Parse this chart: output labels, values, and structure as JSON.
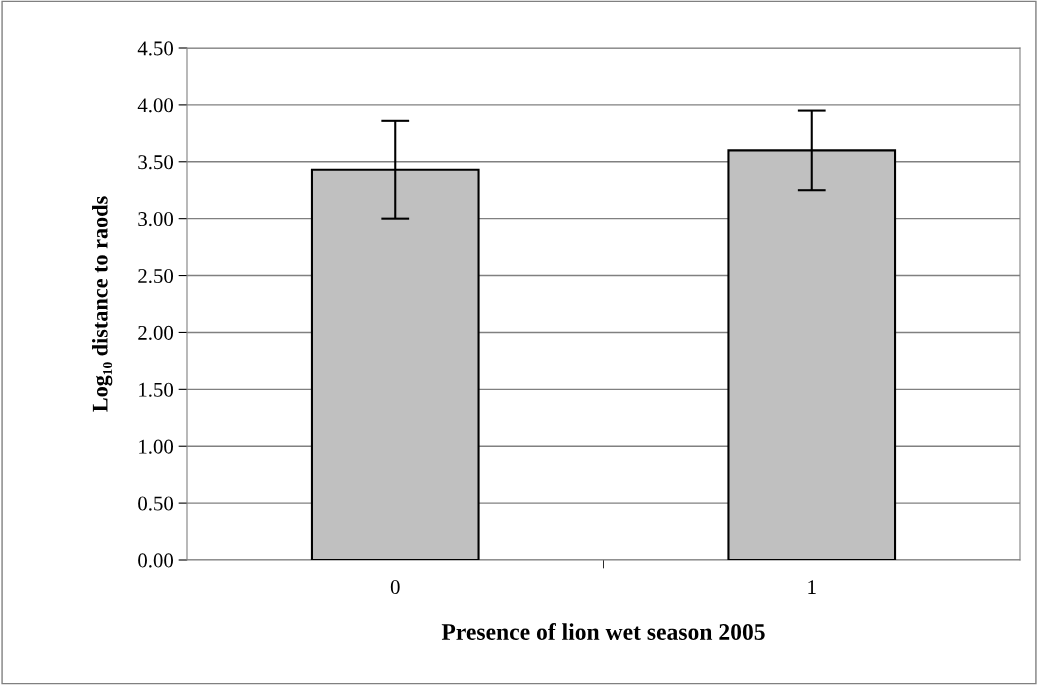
{
  "chart_data": {
    "type": "bar",
    "xlabel": "Presence of lion wet season 2005",
    "ylabel": "Log₁₀ distance to raods",
    "categories": [
      "0",
      "1"
    ],
    "values": [
      3.43,
      3.6
    ],
    "errors": [
      0.43,
      0.35
    ],
    "color": "#c0c0c0",
    "ylim": [
      0,
      4.5
    ],
    "yticks": [
      {
        "value": 0,
        "label": "0.00"
      },
      {
        "value": 0.5,
        "label": "0.50"
      },
      {
        "value": 1,
        "label": "1.00"
      },
      {
        "value": 1.5,
        "label": "1.50"
      },
      {
        "value": 2,
        "label": "2.00"
      },
      {
        "value": 2.5,
        "label": "2.50"
      },
      {
        "value": 3,
        "label": "3.00"
      },
      {
        "value": 3.5,
        "label": "3.50"
      },
      {
        "value": 4,
        "label": "4.00"
      },
      {
        "value": 4.5,
        "label": "4.50"
      }
    ],
    "grid": "y"
  }
}
